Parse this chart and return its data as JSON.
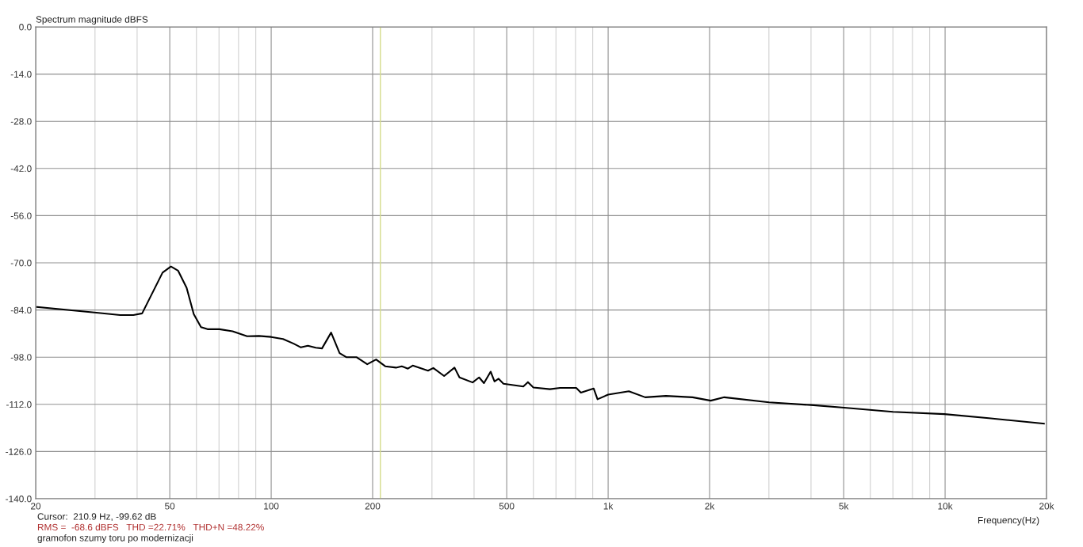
{
  "chart_data": {
    "type": "line",
    "ylabel": "Spectrum magnitude dBFS",
    "xlabel": "Frequency(Hz)",
    "log": "x",
    "grid": true,
    "marker": "none",
    "line_style": "solid",
    "xlim": [
      20,
      20000
    ],
    "ylim": [
      -140,
      0
    ],
    "xticks": [
      20,
      50,
      100,
      200,
      500,
      {
        "value": 1000,
        "label": "1k"
      },
      {
        "value": 2000,
        "label": "2k"
      },
      {
        "value": 5000,
        "label": "5k"
      },
      {
        "value": 10000,
        "label": "10k"
      },
      {
        "value": 20000,
        "label": "20k"
      }
    ],
    "yticks": [
      {
        "value": 0,
        "label": "0.0"
      },
      {
        "value": -14,
        "label": "-14.0"
      },
      {
        "value": -28,
        "label": "-28.0"
      },
      {
        "value": -42,
        "label": "-42.0"
      },
      {
        "value": -56,
        "label": "-56.0"
      },
      {
        "value": -70,
        "label": "-70.0"
      },
      {
        "value": -84,
        "label": "-84.0"
      },
      {
        "value": -98,
        "label": "-98.0"
      },
      {
        "value": -112,
        "label": "-112.0"
      },
      {
        "value": -126,
        "label": "-126.0"
      },
      {
        "value": -140,
        "label": "-140.0"
      }
    ],
    "ref_lines": [
      {
        "axis": "x",
        "value": 210.9,
        "color": "#d4dc8a"
      }
    ],
    "series": [
      {
        "color": "#000000",
        "x": [
          20.2,
          30.3,
          35.6,
          39,
          41.4,
          47.6,
          50.4,
          52.9,
          56.1,
          58.9,
          61.9,
          64.7,
          70.2,
          76.8,
          84.8,
          92,
          100,
          108.4,
          116.6,
          122.5,
          128.5,
          135.6,
          141.5,
          150.6,
          159.6,
          167,
          179,
          192.8,
          204.8,
          218,
          234.6,
          244,
          254.5,
          263,
          292,
          302.8,
          326,
          350,
          362,
          396,
          414,
          428,
          448,
          460,
          473,
          489,
          560,
          578,
          600,
          672,
          720,
          804,
          830,
          906,
          930,
          1000,
          1152,
          1288,
          1484,
          1780,
          2016,
          2212,
          3004,
          4000,
          5020,
          7000,
          9960,
          13480,
          19650
        ],
        "values": [
          -83.1,
          -84.8,
          -85.5,
          -85.5,
          -85.0,
          -72.9,
          -71.1,
          -72.3,
          -77.4,
          -85.2,
          -89.1,
          -89.7,
          -89.7,
          -90.3,
          -91.8,
          -91.7,
          -92.0,
          -92.6,
          -94.0,
          -95.1,
          -94.6,
          -95.2,
          -95.4,
          -90.7,
          -96.8,
          -98.0,
          -98.0,
          -100.1,
          -98.7,
          -100.7,
          -101.1,
          -100.7,
          -101.4,
          -100.5,
          -102.0,
          -101.2,
          -103.6,
          -101.1,
          -104.0,
          -105.5,
          -104.0,
          -105.7,
          -102.3,
          -105.2,
          -104.4,
          -105.9,
          -106.7,
          -105.4,
          -107.0,
          -107.5,
          -107.1,
          -107.1,
          -108.5,
          -107.3,
          -110.5,
          -109.1,
          -108.1,
          -109.9,
          -109.5,
          -109.9,
          -110.9,
          -109.9,
          -111.4,
          -112.2,
          -113.0,
          -114.2,
          -114.9,
          -116.1,
          -117.7
        ]
      }
    ],
    "annotations": [
      "Cursor:  210.9 Hz, -99.62 dB",
      "RMS =  -68.6 dBFS   THD =22.71%   THD+N =48.22%",
      "gramofon szumy toru po modernizacji"
    ]
  }
}
